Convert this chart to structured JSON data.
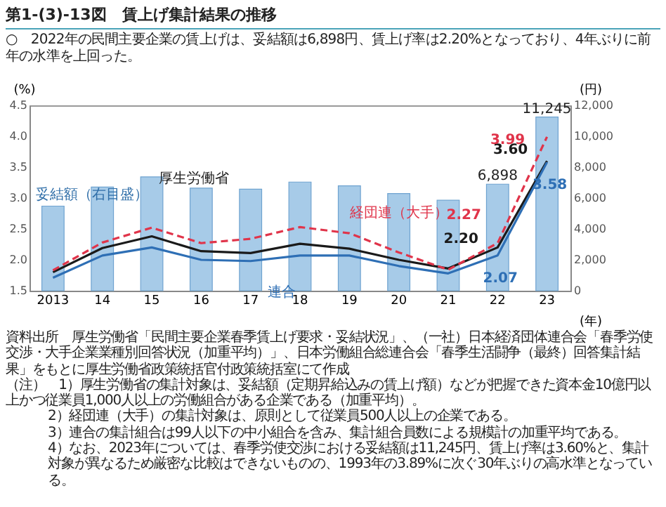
{
  "chart_data": {
    "type": "line",
    "title": "第1-(3)-13図　賃上げ集計結果の推移",
    "subtitle": "○　2022年の民間主要企業の賃上げは、妥結額は6,898円、賃上げ率は2.20%となっており、4年ぶりに前年の水準を上回った。",
    "xlabel": "(年)",
    "ylabel": "(%)",
    "y2label": "(円)",
    "categories": [
      "2013",
      "14",
      "15",
      "16",
      "17",
      "18",
      "19",
      "20",
      "21",
      "22",
      "23"
    ],
    "ylim": [
      1.5,
      4.5
    ],
    "yticks": [
      {
        "value": 1.5,
        "label": "1.5"
      },
      {
        "value": 2,
        "label": "2.0"
      },
      {
        "value": 2.5,
        "label": "2.5"
      },
      {
        "value": 3,
        "label": "3.0"
      },
      {
        "value": 3.5,
        "label": "3.5"
      },
      {
        "value": 4,
        "label": "4.0"
      },
      {
        "value": 4.5,
        "label": "4.5"
      }
    ],
    "y2lim": [
      0,
      12000
    ],
    "y2ticks": [
      0,
      {
        "value": 2000,
        "label": "2,000"
      },
      {
        "value": 4000,
        "label": "4,000"
      },
      {
        "value": 6000,
        "label": "6,000"
      },
      {
        "value": 8000,
        "label": "8,000"
      },
      {
        "value": 10000,
        "label": "10,000"
      },
      {
        "value": 12000,
        "label": "12,000"
      }
    ],
    "series": [
      {
        "name": "妥結額（右目盛）",
        "type": "bar",
        "axis": "y2",
        "color": "#a7cbe8",
        "values": [
          5478,
          6711,
          7367,
          6639,
          6570,
          7033,
          6790,
          6286,
          5854,
          6898,
          11245
        ],
        "value_labels": [
          null,
          null,
          null,
          null,
          null,
          null,
          null,
          null,
          null,
          "6,898",
          "11,245"
        ]
      },
      {
        "name": "厚生労働省",
        "color": "#1a1a1a",
        "values": [
          1.8,
          2.19,
          2.38,
          2.14,
          2.11,
          2.26,
          2.18,
          2.0,
          1.86,
          2.2,
          3.6
        ],
        "value_labels": [
          null,
          null,
          null,
          null,
          null,
          null,
          null,
          null,
          null,
          "2.20",
          "3.60"
        ]
      },
      {
        "name": "経団連（大手）",
        "color": "#e0344a",
        "line_style": "dashed",
        "values": [
          1.83,
          2.28,
          2.52,
          2.27,
          2.34,
          2.53,
          2.43,
          2.12,
          1.84,
          2.27,
          3.99
        ],
        "value_labels": [
          null,
          null,
          null,
          null,
          null,
          null,
          null,
          null,
          null,
          "2.27",
          "3.99"
        ]
      },
      {
        "name": "連合",
        "color": "#2e6fb5",
        "values": [
          1.71,
          2.07,
          2.2,
          2.0,
          1.98,
          2.07,
          2.07,
          1.9,
          1.78,
          2.07,
          3.58
        ],
        "value_labels": [
          null,
          null,
          null,
          null,
          null,
          null,
          null,
          null,
          null,
          "2.07",
          "3.58"
        ]
      }
    ],
    "legend": false,
    "annotations": [
      "資料出所　厚生労働省「民間主要企業春季賃上げ要求・妥結状況」、（一社）日本経済団体連合会「春季労使交渉・大手企業業種別回答状況（加重平均）」、日本労働組合総連合会「春季生活闘争（最終）回答集計結果」をもとに厚生労働省政策統括官付政策統括室にて作成",
      "（注）　1）厚生労働省の集計対象は、妥結額（定期昇給込みの賃上げ額）などが把握できた資本金10億円以上かつ従業員1,000人以上の労働組合がある企業である（加重平均）。",
      "2）経団連（大手）の集計対象は、原則として従業員500人以上の企業である。",
      "3）連合の集計組合は99人以下の中小組合を含み、集計組合員数による規模計の加重平均である。",
      "4）なお、2023年については、春季労使交渉における妥結額は11,245円、賃上げ率は3.60%と、集計対象が異なるため厳密な比較はできないものの、1993年の3.89%に次ぐ30年ぶりの高水準となっている。"
    ]
  }
}
